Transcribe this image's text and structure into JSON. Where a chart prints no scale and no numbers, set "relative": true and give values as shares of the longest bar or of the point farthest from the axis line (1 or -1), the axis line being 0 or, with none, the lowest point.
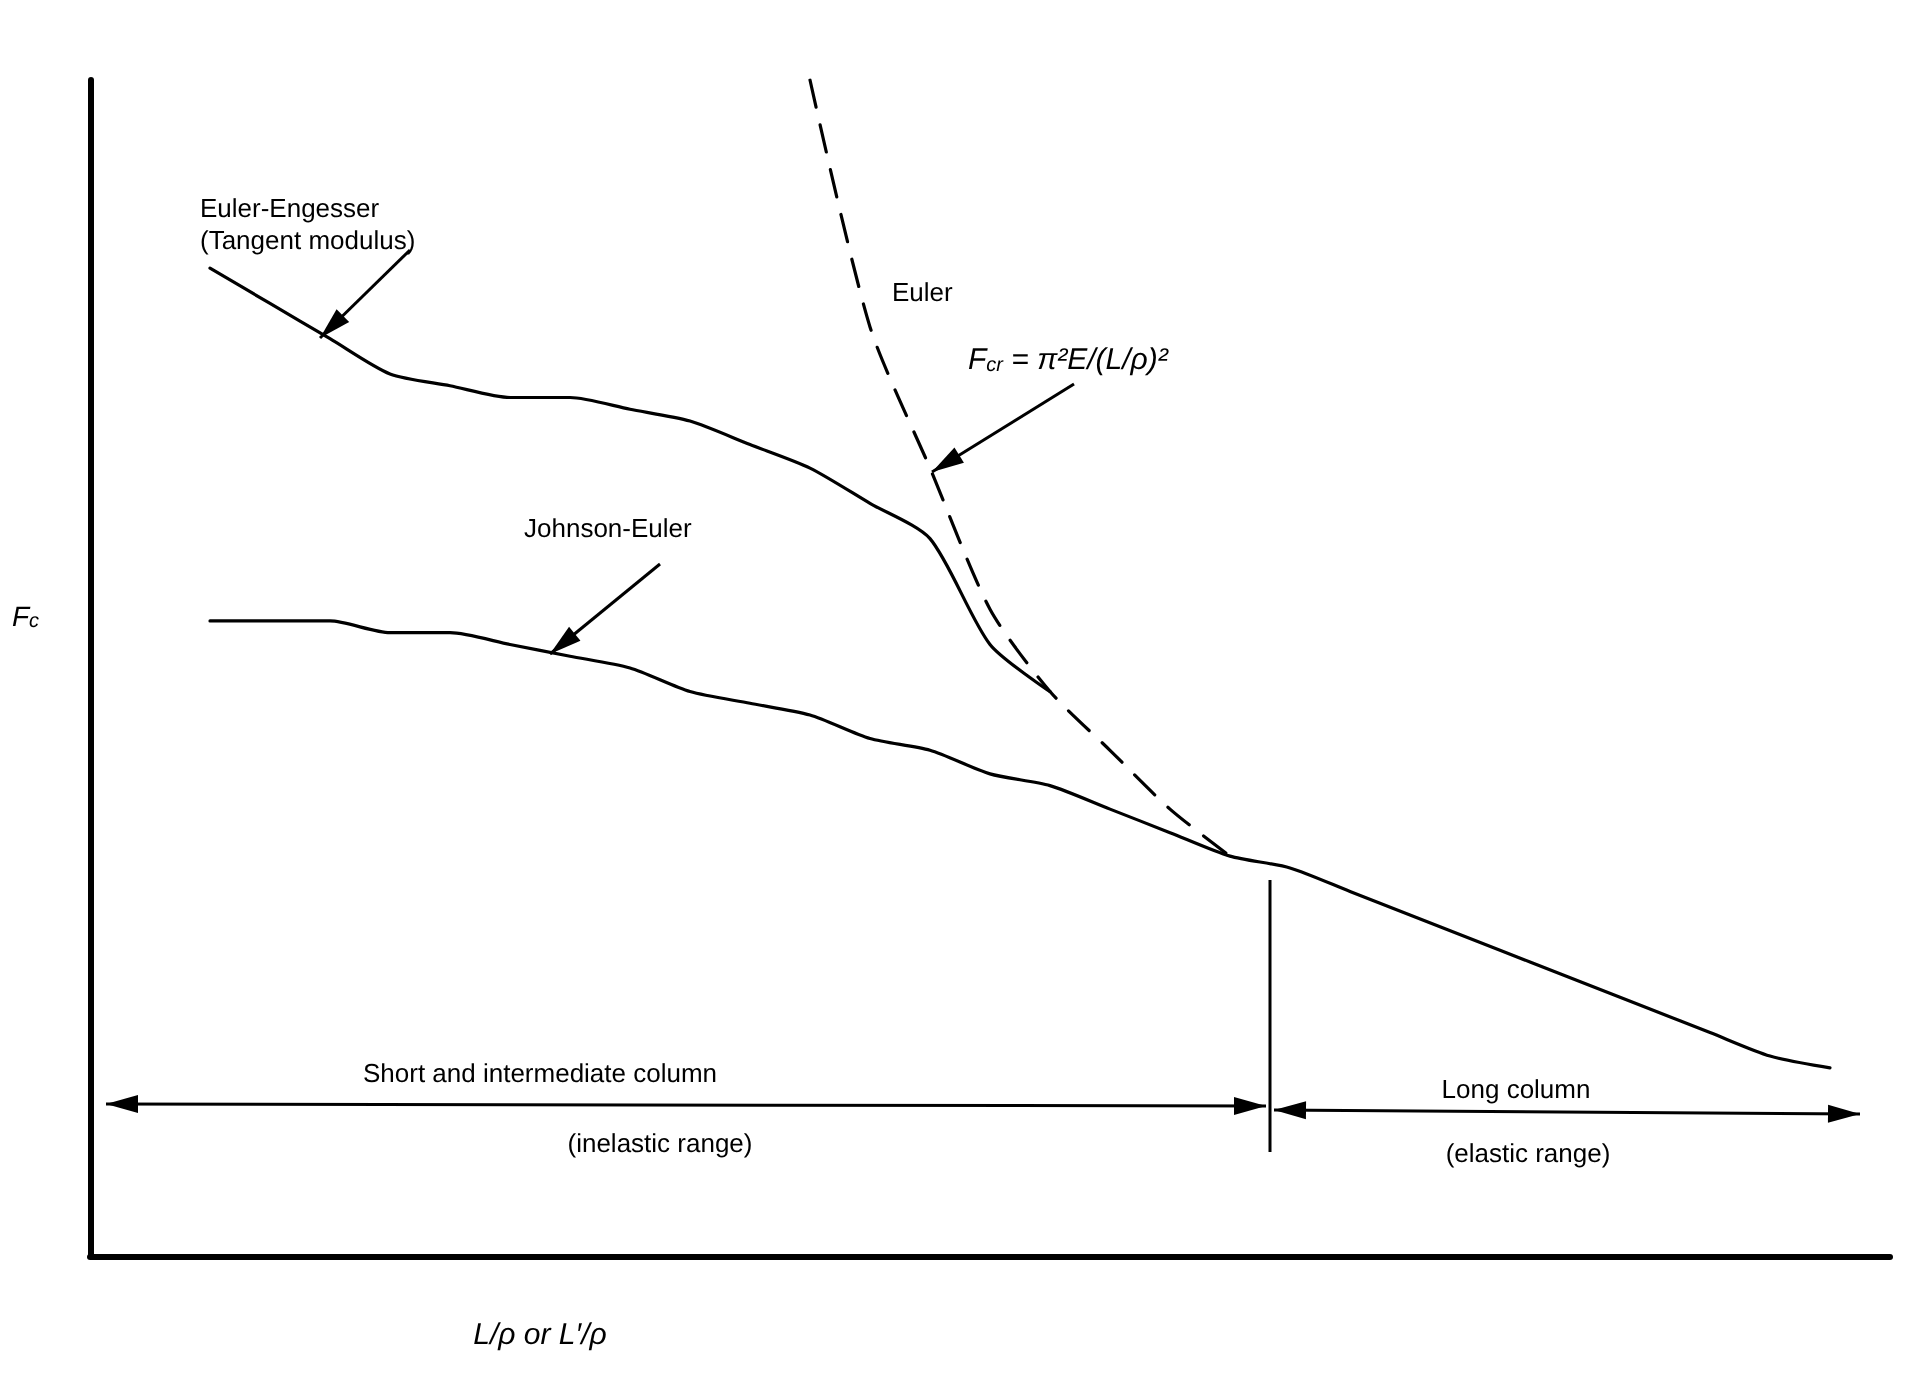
{
  "chart_data": {
    "type": "line",
    "relative": true,
    "marker": "none",
    "ylabel": "F$_{c}$",
    "xlabel": "L/ρ or L′/ρ",
    "categories": [
      null,
      null,
      null,
      null,
      null,
      null,
      null,
      null,
      null,
      null,
      null,
      null,
      null,
      null,
      null,
      null,
      null,
      null,
      null,
      null,
      null,
      null,
      null,
      null,
      null,
      null,
      null,
      null,
      null,
      null,
      null
    ],
    "series": [
      {
        "name": "Euler-Engesser (Tangent modulus)",
        "color": "#000000",
        "line_style": "solid",
        "values": [
          null,
          null,
          0.84,
          0.81,
          0.78,
          0.75,
          0.74,
          0.73,
          0.73,
          0.72,
          0.71,
          0.69,
          0.67,
          0.64,
          0.61,
          0.52,
          0.48,
          null,
          null,
          null,
          null,
          null,
          null,
          null,
          null,
          null,
          null,
          null,
          null,
          null,
          null
        ]
      },
      {
        "name": "Euler",
        "color": "#000000",
        "line_style": "dashed",
        "values": [
          null,
          null,
          null,
          null,
          null,
          null,
          null,
          null,
          null,
          null,
          null,
          null,
          1,
          0.79,
          0.67,
          0.55,
          0.48,
          0.43,
          0.38,
          0.34,
          null,
          null,
          null,
          null,
          null,
          null,
          null,
          null,
          null,
          null,
          null
        ]
      },
      {
        "name": "Johnson-Euler",
        "color": "#000000",
        "line_style": "solid",
        "values": [
          null,
          null,
          0.54,
          0.54,
          0.54,
          0.53,
          0.53,
          0.52,
          0.51,
          0.5,
          0.48,
          0.47,
          0.46,
          0.44,
          0.43,
          0.41,
          0.4,
          0.38,
          0.36,
          0.34,
          0.33,
          0.31,
          0.29,
          0.27,
          0.25,
          0.23,
          0.21,
          0.19,
          0.17,
          0.16,
          null
        ]
      }
    ],
    "annotations": [
      "F$_{cr}$ = π²E/(L/ρ)²",
      "Short and intermediate column",
      "(inelastic range)",
      "Long column",
      "(elastic range)"
    ]
  }
}
